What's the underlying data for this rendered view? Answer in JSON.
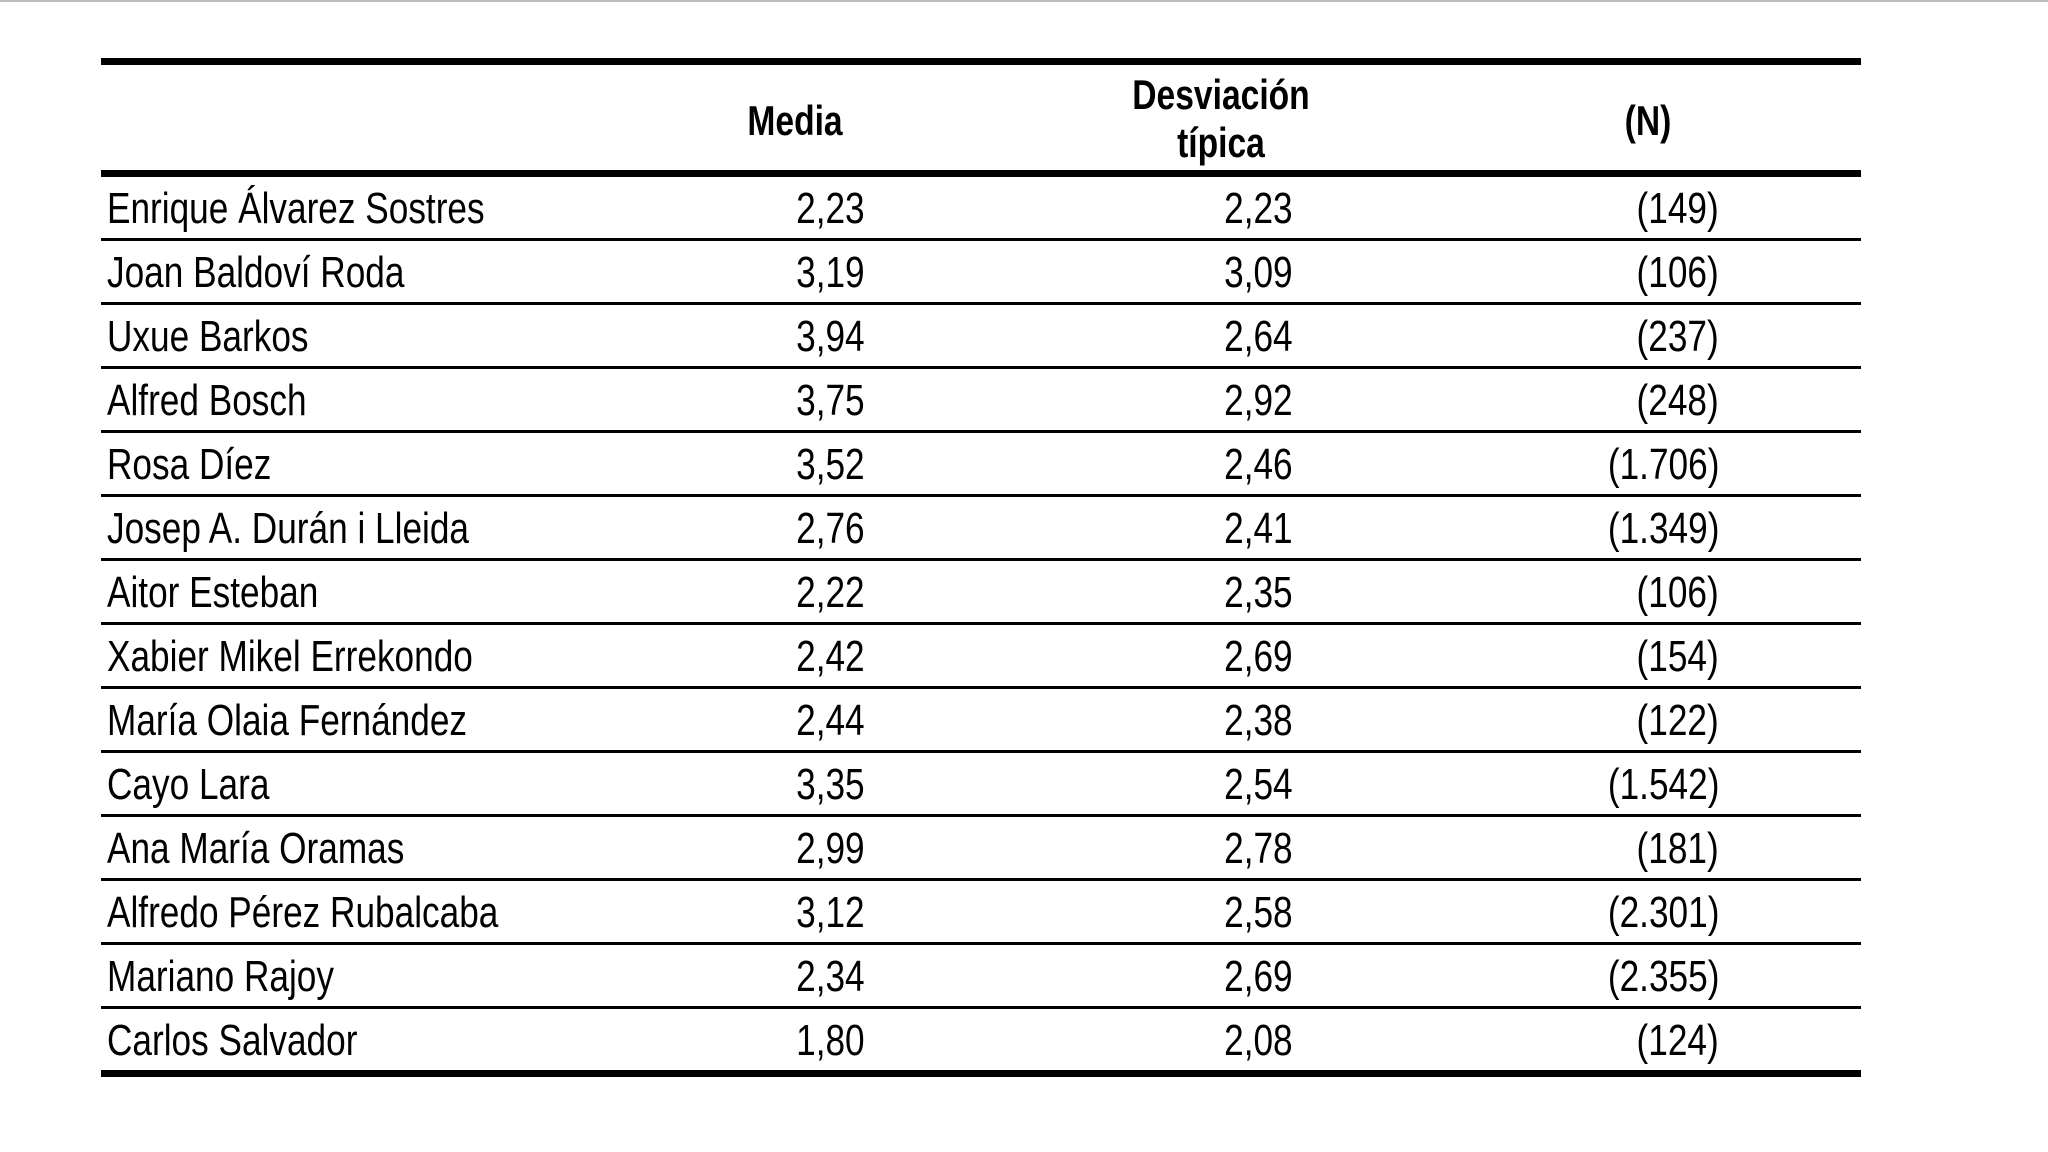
{
  "table": {
    "headers": [
      "",
      "Media",
      "Desviación típica",
      "(N)"
    ],
    "header_lines": {
      "desviacion_1": "Desviación",
      "desviacion_2": "típica"
    },
    "rows": [
      {
        "name": "Enrique Álvarez Sostres",
        "media": "2,23",
        "desviacion": "2,23",
        "n": "(149)"
      },
      {
        "name": "Joan Baldoví Roda",
        "media": "3,19",
        "desviacion": "3,09",
        "n": "(106)"
      },
      {
        "name": "Uxue Barkos",
        "media": "3,94",
        "desviacion": "2,64",
        "n": "(237)"
      },
      {
        "name": "Alfred Bosch",
        "media": "3,75",
        "desviacion": "2,92",
        "n": "(248)"
      },
      {
        "name": "Rosa Díez",
        "media": "3,52",
        "desviacion": "2,46",
        "n": "(1.706)"
      },
      {
        "name": "Josep A. Durán i Lleida",
        "media": "2,76",
        "desviacion": "2,41",
        "n": "(1.349)"
      },
      {
        "name": "Aitor Esteban",
        "media": "2,22",
        "desviacion": "2,35",
        "n": "(106)"
      },
      {
        "name": "Xabier Mikel Errekondo",
        "media": "2,42",
        "desviacion": "2,69",
        "n": "(154)"
      },
      {
        "name": "María Olaia Fernández",
        "media": "2,44",
        "desviacion": "2,38",
        "n": "(122)"
      },
      {
        "name": "Cayo Lara",
        "media": "3,35",
        "desviacion": "2,54",
        "n": "(1.542)"
      },
      {
        "name": "Ana María Oramas",
        "media": "2,99",
        "desviacion": "2,78",
        "n": "(181)"
      },
      {
        "name": "Alfredo Pérez Rubalcaba",
        "media": "3,12",
        "desviacion": "2,58",
        "n": "(2.301)"
      },
      {
        "name": "Mariano Rajoy",
        "media": "2,34",
        "desviacion": "2,69",
        "n": "(2.355)"
      },
      {
        "name": "Carlos Salvador",
        "media": "1,80",
        "desviacion": "2,08",
        "n": "(124)"
      }
    ]
  }
}
